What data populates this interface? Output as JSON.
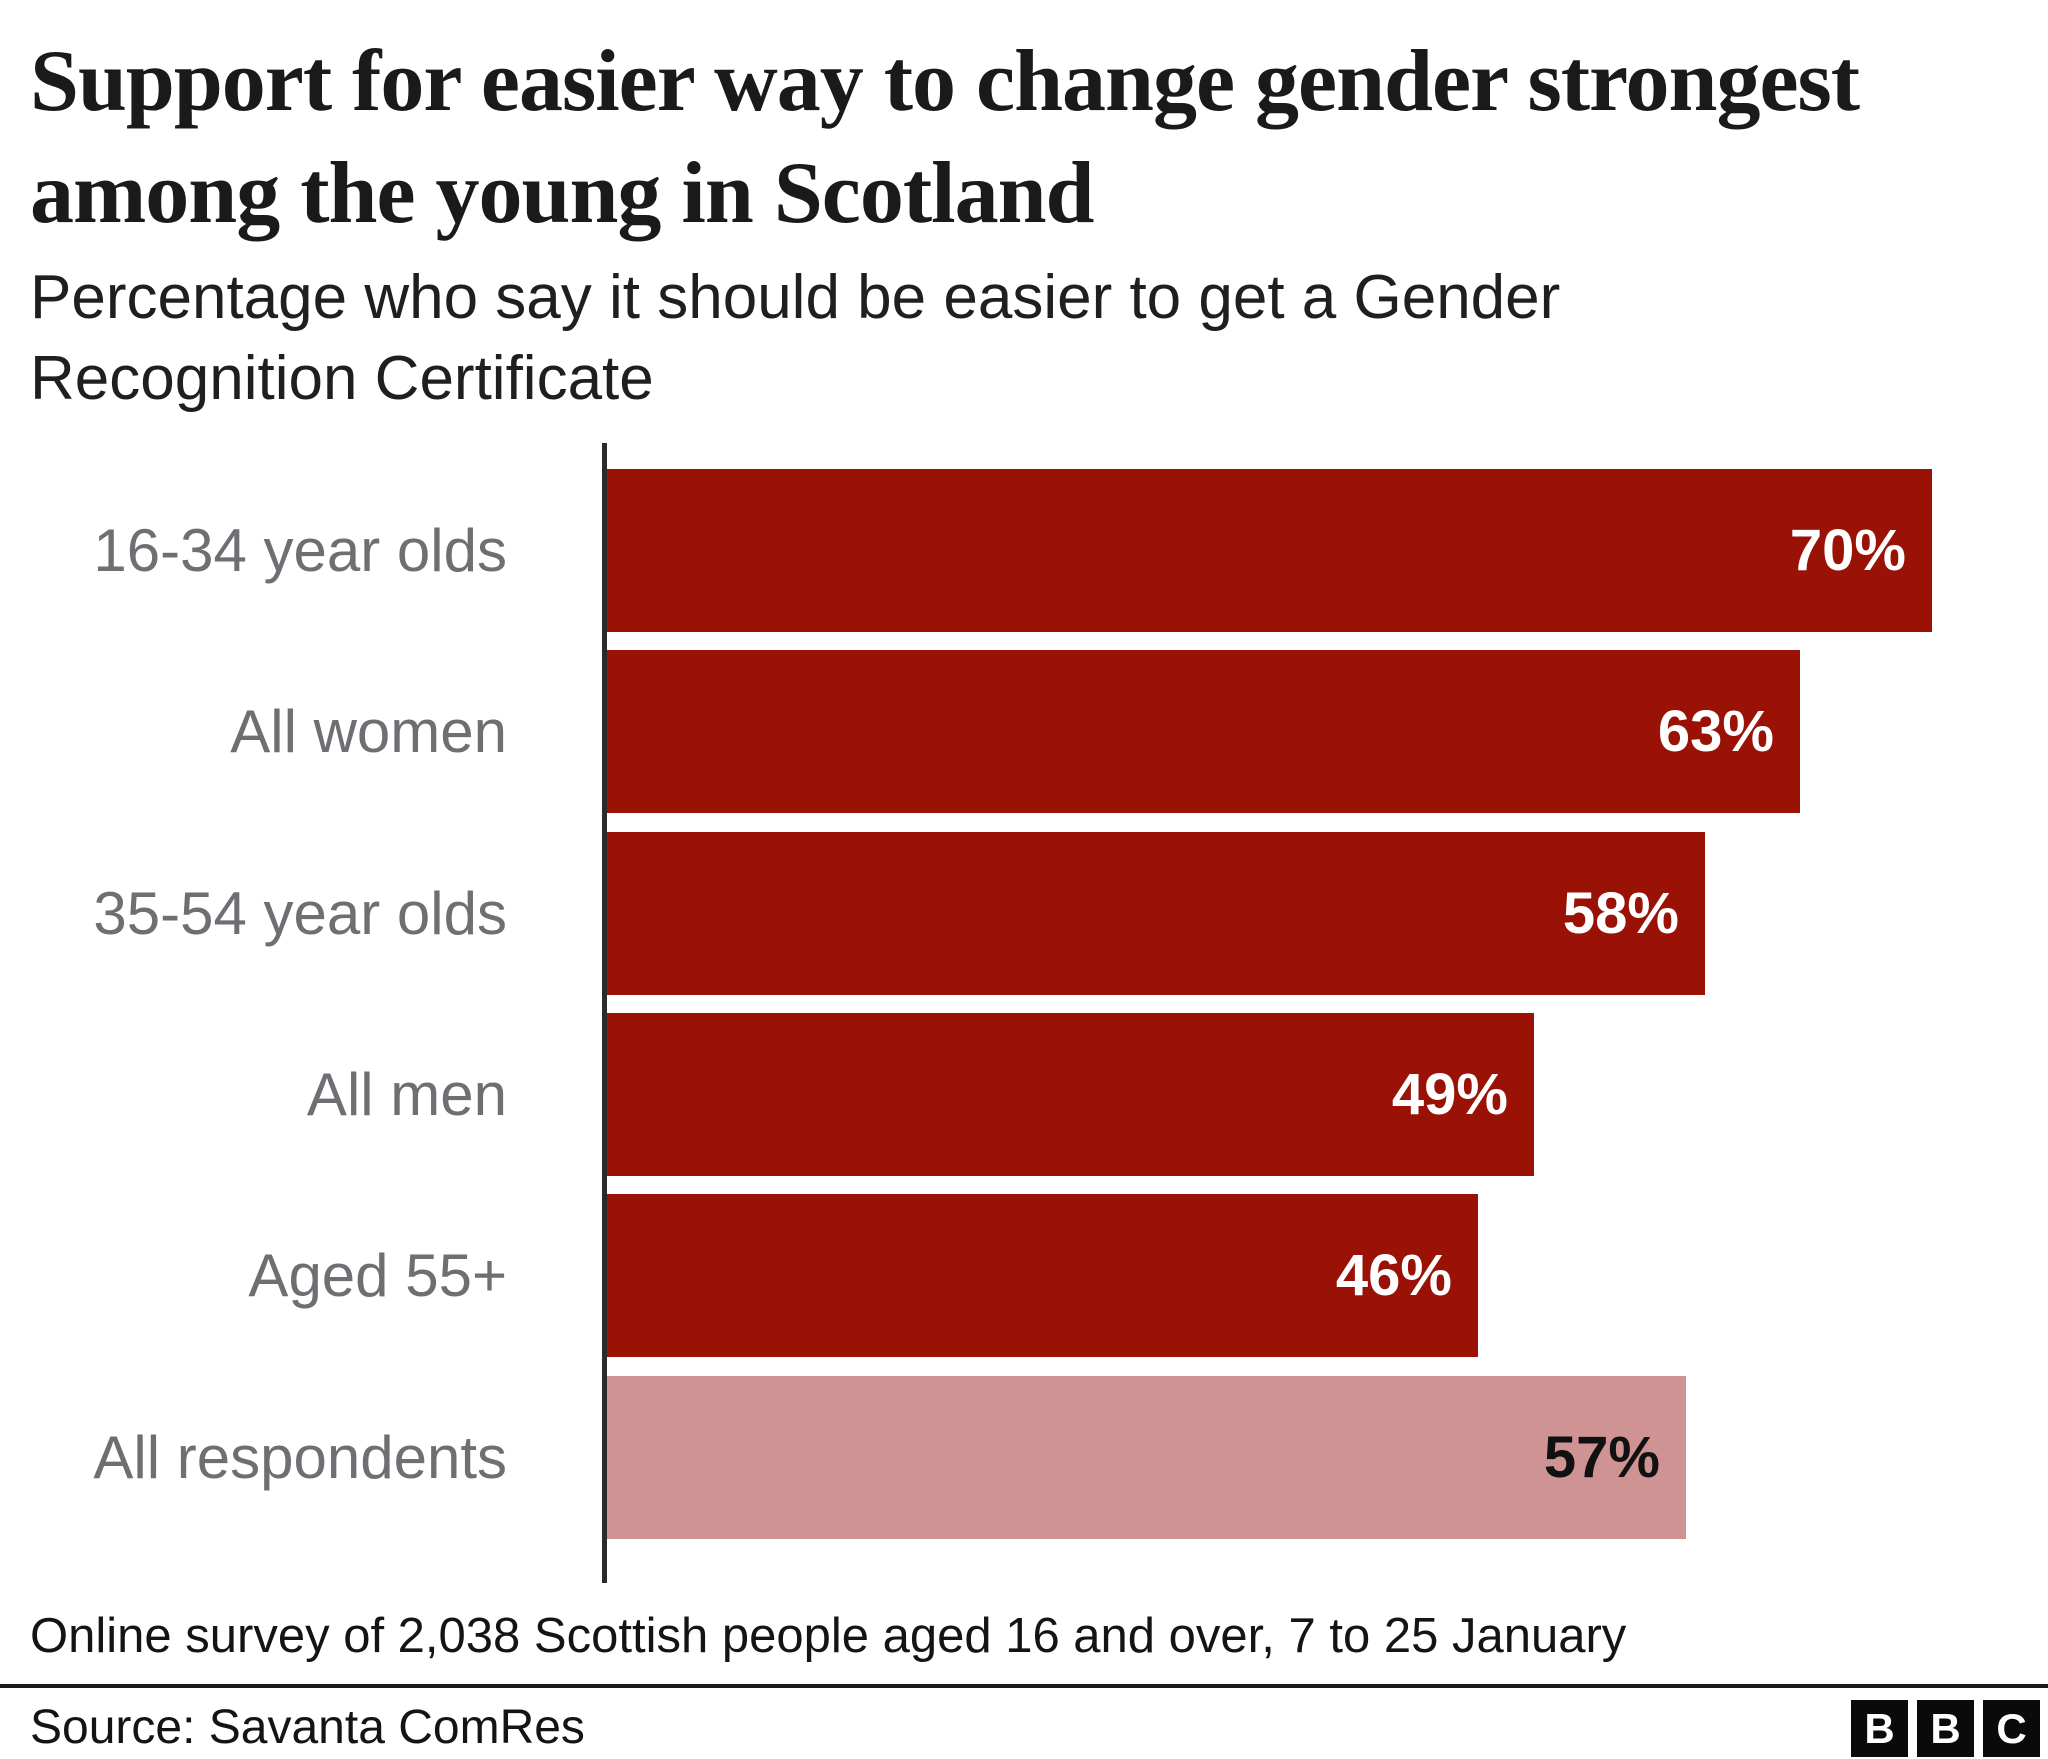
{
  "header": {
    "title": "Support for easier way to change gender strongest among the young in Scotland",
    "subtitle": "Percentage who say it should be easier to get a Gender Recognition Certificate"
  },
  "chart_data": {
    "type": "bar",
    "orientation": "horizontal",
    "categories": [
      "16-34 year olds",
      "All women",
      "35-54 year olds",
      "All men",
      "Aged 55+",
      "All respondents"
    ],
    "values": [
      70,
      63,
      58,
      49,
      46,
      57
    ],
    "value_labels": [
      "70%",
      "63%",
      "58%",
      "49%",
      "46%",
      "57%"
    ],
    "highlight_index": 5,
    "title": "Support for easier way to change gender strongest among the young in Scotland",
    "xlabel": "",
    "ylabel": "",
    "xlim": [
      0,
      75
    ],
    "grid": false,
    "legend": "none",
    "colors": {
      "bar": "#9a1106",
      "highlight_bar": "#d09393",
      "value_label": "#ffffff",
      "highlight_value_label": "#111111",
      "category_label": "#6e6e73",
      "axis": "#2b2b2b"
    }
  },
  "footer": {
    "note": "Online survey of 2,038 Scottish people aged 16 and over, 7 to 25 January",
    "source": "Source: Savanta ComRes",
    "logo": [
      "B",
      "B",
      "C"
    ]
  }
}
